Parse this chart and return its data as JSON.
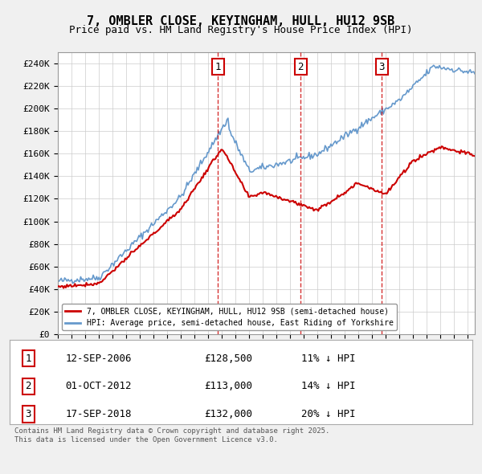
{
  "title": "7, OMBLER CLOSE, KEYINGHAM, HULL, HU12 9SB",
  "subtitle": "Price paid vs. HM Land Registry's House Price Index (HPI)",
  "ylabel_ticks": [
    "£0",
    "£20K",
    "£40K",
    "£60K",
    "£80K",
    "£100K",
    "£120K",
    "£140K",
    "£160K",
    "£180K",
    "£200K",
    "£220K",
    "£240K"
  ],
  "ylim": [
    0,
    250000
  ],
  "ytick_vals": [
    0,
    20000,
    40000,
    60000,
    80000,
    100000,
    120000,
    140000,
    160000,
    180000,
    200000,
    220000,
    240000
  ],
  "bg_color": "#f0f0f0",
  "plot_bg_color": "#ffffff",
  "grid_color": "#cccccc",
  "red_color": "#cc0000",
  "blue_color": "#6699cc",
  "legend_entries": [
    "7, OMBLER CLOSE, KEYINGHAM, HULL, HU12 9SB (semi-detached house)",
    "HPI: Average price, semi-detached house, East Riding of Yorkshire"
  ],
  "sale_points": [
    {
      "date_num": 2006.7,
      "price": 128500,
      "label": "1"
    },
    {
      "date_num": 2012.75,
      "price": 113000,
      "label": "2"
    },
    {
      "date_num": 2018.7,
      "price": 132000,
      "label": "3"
    }
  ],
  "sale_info": [
    {
      "num": "1",
      "date": "12-SEP-2006",
      "price": "£128,500",
      "note": "11% ↓ HPI"
    },
    {
      "num": "2",
      "date": "01-OCT-2012",
      "price": "£113,000",
      "note": "14% ↓ HPI"
    },
    {
      "num": "3",
      "date": "17-SEP-2018",
      "price": "£132,000",
      "note": "20% ↓ HPI"
    }
  ],
  "footer": "Contains HM Land Registry data © Crown copyright and database right 2025.\nThis data is licensed under the Open Government Licence v3.0.",
  "xmin": 1995,
  "xmax": 2025.5
}
